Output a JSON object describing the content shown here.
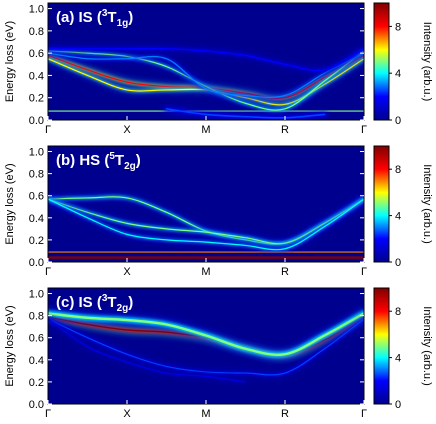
{
  "figure": {
    "ylabel": "Energy loss (eV)",
    "colorbar_label": "Intensity (arb.u.)",
    "colorbar_ticks": [
      "0",
      "4",
      "8"
    ],
    "colorbar_range": [
      0,
      10
    ],
    "colormap": [
      "#00008f",
      "#0000ff",
      "#00ffff",
      "#ffff00",
      "#ff0000",
      "#800000"
    ],
    "background_color": "#00008f"
  },
  "chart_data": [
    {
      "type": "heatmap",
      "title_prefix": "(a) IS (",
      "title_sup": "3",
      "title_main": "T",
      "title_sub": "1g",
      "title_suffix": ")",
      "x_ticks": [
        "Γ",
        "X",
        "M",
        "R",
        "Γ"
      ],
      "ylim": [
        0,
        1.05
      ],
      "y_ticks": [
        "0.0",
        "0.2",
        "0.4",
        "0.6",
        "0.8",
        "1.0"
      ],
      "series": [
        {
          "x": [
            0,
            1,
            2,
            3,
            4
          ],
          "y": [
            0.08,
            0.08,
            0.08,
            0.08,
            0.08
          ],
          "intensity": 5,
          "width": 0.015
        },
        {
          "x": [
            0,
            0.5,
            1,
            1.5,
            2,
            2.5,
            3,
            3.5,
            4
          ],
          "y": [
            0.58,
            0.45,
            0.34,
            0.3,
            0.29,
            0.24,
            0.2,
            0.38,
            0.58
          ],
          "intensity": 8,
          "width": 0.014
        },
        {
          "x": [
            0,
            0.5,
            1,
            1.5,
            2,
            2.5,
            3,
            3.5,
            4
          ],
          "y": [
            0.55,
            0.4,
            0.27,
            0.27,
            0.27,
            0.2,
            0.14,
            0.32,
            0.55
          ],
          "intensity": 6,
          "width": 0.013
        },
        {
          "x": [
            0,
            0.5,
            1,
            1.5,
            2,
            2.5,
            3,
            3.5,
            4
          ],
          "y": [
            0.62,
            0.6,
            0.57,
            0.48,
            0.3,
            0.15,
            0.1,
            0.35,
            0.62
          ],
          "intensity": 5,
          "width": 0.012
        },
        {
          "x": [
            0,
            0.5,
            1,
            1.5,
            2,
            2.5,
            3,
            3.5,
            4
          ],
          "y": [
            0.6,
            0.55,
            0.55,
            0.55,
            0.28,
            0.22,
            0.22,
            0.42,
            0.6
          ],
          "intensity": 3,
          "width": 0.012
        },
        {
          "x": [
            0,
            0.5,
            1,
            1.5,
            2,
            2.5,
            3,
            3.5,
            4
          ],
          "y": [
            0.64,
            0.64,
            0.64,
            0.64,
            0.62,
            0.58,
            0.5,
            0.45,
            0.64
          ],
          "intensity": 2,
          "width": 0.015
        },
        {
          "x": [
            1.5,
            2,
            2.5,
            3,
            3.5
          ],
          "y": [
            0.1,
            0.05,
            0.03,
            0.02,
            0.05
          ],
          "intensity": 2.5,
          "width": 0.02
        }
      ]
    },
    {
      "type": "heatmap",
      "title_prefix": "(b) HS (",
      "title_sup": "5",
      "title_main": "T",
      "title_sub": "2g",
      "title_suffix": ")",
      "x_ticks": [
        "Γ",
        "X",
        "M",
        "R",
        "Γ"
      ],
      "ylim": [
        0,
        1.05
      ],
      "y_ticks": [
        "0.0",
        "0.2",
        "0.4",
        "0.6",
        "0.8",
        "1.0"
      ],
      "series": [
        {
          "x": [
            0,
            1,
            2,
            3,
            4
          ],
          "y": [
            0.04,
            0.04,
            0.04,
            0.04,
            0.04
          ],
          "intensity": 10,
          "width": 0.03
        },
        {
          "x": [
            0,
            1,
            2,
            3,
            4
          ],
          "y": [
            0.09,
            0.09,
            0.09,
            0.09,
            0.09
          ],
          "intensity": 7,
          "width": 0.012
        },
        {
          "x": [
            0,
            0.5,
            1,
            1.5,
            2,
            2.5,
            3,
            3.5,
            4
          ],
          "y": [
            0.57,
            0.58,
            0.58,
            0.45,
            0.28,
            0.2,
            0.17,
            0.35,
            0.57
          ],
          "intensity": 5,
          "width": 0.013
        },
        {
          "x": [
            0,
            0.5,
            1,
            1.5,
            2,
            2.5,
            3,
            3.5,
            4
          ],
          "y": [
            0.57,
            0.45,
            0.35,
            0.3,
            0.27,
            0.22,
            0.17,
            0.35,
            0.57
          ],
          "intensity": 5,
          "width": 0.013
        },
        {
          "x": [
            0,
            0.5,
            1,
            1.5,
            2,
            2.5,
            3,
            3.5,
            4
          ],
          "y": [
            0.57,
            0.4,
            0.25,
            0.2,
            0.18,
            0.15,
            0.12,
            0.32,
            0.57
          ],
          "intensity": 4,
          "width": 0.013
        }
      ]
    },
    {
      "type": "heatmap",
      "title_prefix": "(c) IS (",
      "title_sup": "3",
      "title_main": "T",
      "title_sub": "2g",
      "title_suffix": ")",
      "x_ticks": [
        "Γ",
        "X",
        "M",
        "R",
        "Γ"
      ],
      "ylim": [
        0,
        1.05
      ],
      "y_ticks": [
        "0.0",
        "0.2",
        "0.4",
        "0.6",
        "0.8",
        "1.0"
      ],
      "series": [
        {
          "x": [
            0,
            0.5,
            1,
            1.5,
            2,
            2.5,
            3,
            3.5,
            4
          ],
          "y": [
            0.79,
            0.72,
            0.67,
            0.65,
            0.6,
            0.5,
            0.44,
            0.58,
            0.8
          ],
          "intensity": 10,
          "width": 0.018
        },
        {
          "x": [
            0,
            0.5,
            1,
            1.5,
            2,
            2.5,
            3,
            3.5,
            4
          ],
          "y": [
            0.82,
            0.78,
            0.76,
            0.72,
            0.62,
            0.5,
            0.45,
            0.62,
            0.82
          ],
          "intensity": 5,
          "width": 0.03
        },
        {
          "x": [
            0,
            0.5,
            1,
            1.5,
            2,
            2.5,
            3,
            3.5,
            4
          ],
          "y": [
            0.77,
            0.6,
            0.45,
            0.34,
            0.29,
            0.28,
            0.28,
            0.5,
            0.77
          ],
          "intensity": 2.5,
          "width": 0.012
        },
        {
          "x": [
            0,
            0.5,
            1,
            1.5,
            2,
            2.5
          ],
          "y": [
            0.77,
            0.52,
            0.38,
            0.28,
            0.25,
            0.2
          ],
          "intensity": 1.5,
          "width": 0.01
        }
      ]
    }
  ]
}
